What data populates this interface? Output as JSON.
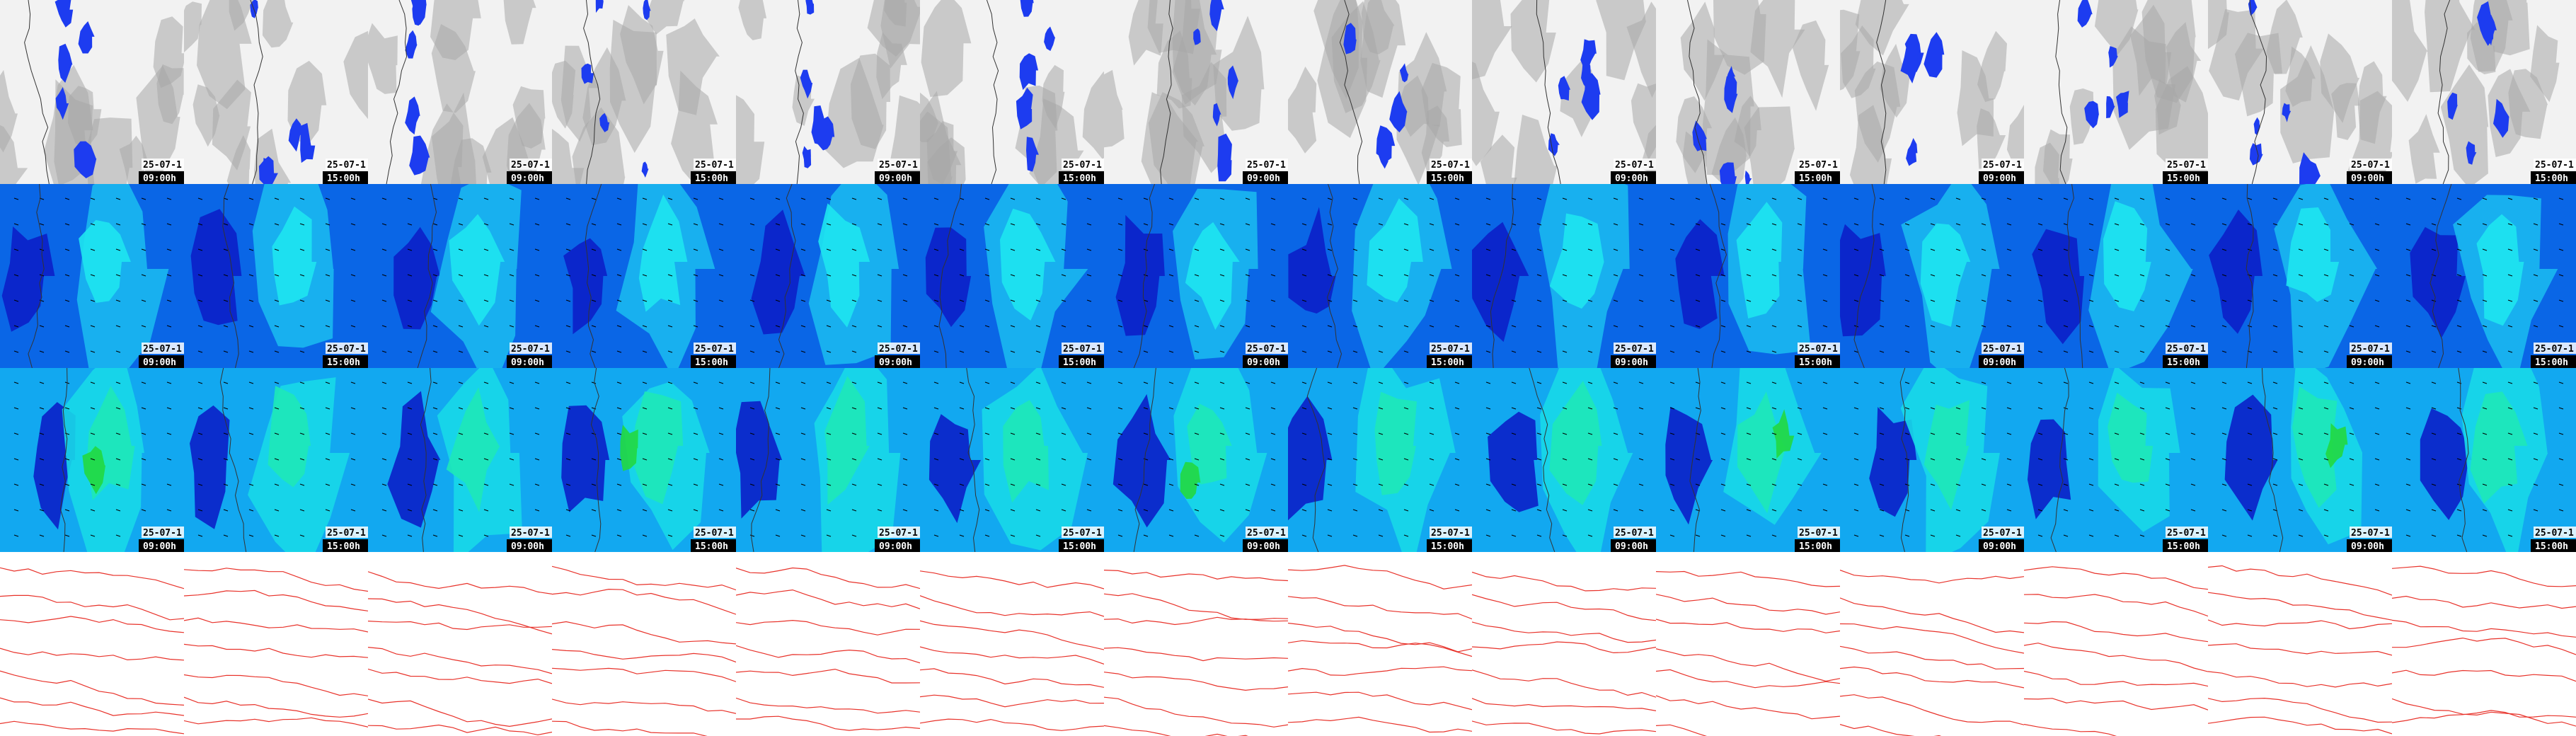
{
  "columns": [
    {
      "date": "25-07-1",
      "time": "09:00h"
    },
    {
      "date": "25-07-1",
      "time": "15:00h"
    },
    {
      "date": "25-07-1",
      "time": "09:00h"
    },
    {
      "date": "25-07-1",
      "time": "15:00h"
    },
    {
      "date": "25-07-1",
      "time": "09:00h"
    },
    {
      "date": "25-07-1",
      "time": "15:00h"
    },
    {
      "date": "25-07-1",
      "time": "09:00h"
    },
    {
      "date": "25-07-1",
      "time": "15:00h"
    },
    {
      "date": "25-07-1",
      "time": "09:00h"
    },
    {
      "date": "25-07-1",
      "time": "15:00h"
    },
    {
      "date": "25-07-1",
      "time": "09:00h"
    },
    {
      "date": "25-07-1",
      "time": "15:00h"
    },
    {
      "date": "25-07-1",
      "time": "09:00h"
    },
    {
      "date": "25-07-1",
      "time": "15:00h"
    }
  ]
}
